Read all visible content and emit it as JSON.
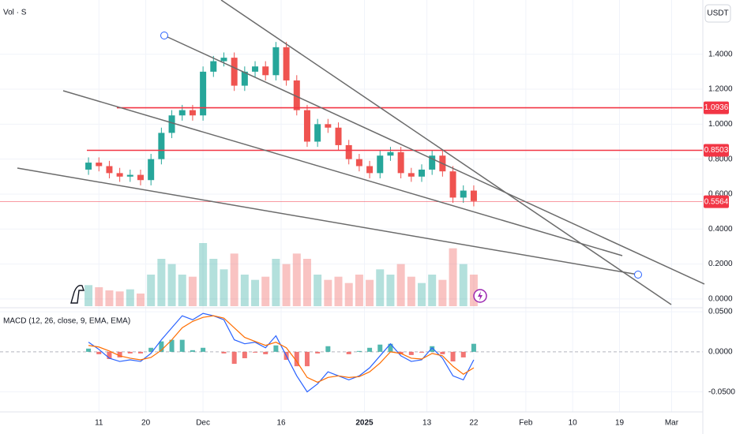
{
  "chart_data": [
    {
      "type": "candlestick",
      "title": "Vol · S",
      "currency": "USDT",
      "x": [
        0,
        2,
        4,
        6,
        8,
        10,
        12,
        14,
        16,
        18,
        20,
        22,
        24,
        26,
        28,
        30,
        32,
        34,
        36,
        38,
        40,
        42,
        44,
        46,
        48,
        50,
        52,
        54,
        56,
        58,
        60,
        62,
        64,
        66,
        68,
        70,
        72,
        74
      ],
      "open": [
        0.74,
        0.78,
        0.76,
        0.72,
        0.7,
        0.71,
        0.68,
        0.8,
        0.95,
        1.05,
        1.08,
        1.05,
        1.3,
        1.36,
        1.38,
        1.22,
        1.3,
        1.33,
        1.28,
        1.44,
        1.25,
        1.08,
        0.9,
        1.0,
        0.98,
        0.88,
        0.8,
        0.76,
        0.72,
        0.82,
        0.84,
        0.72,
        0.7,
        0.74,
        0.82,
        0.73,
        0.58,
        0.62
      ],
      "high": [
        0.81,
        0.81,
        0.79,
        0.75,
        0.74,
        0.74,
        0.83,
        0.98,
        1.08,
        1.11,
        1.11,
        1.33,
        1.39,
        1.41,
        1.41,
        1.33,
        1.36,
        1.36,
        1.47,
        1.47,
        1.28,
        1.11,
        1.03,
        1.03,
        1.01,
        0.91,
        0.83,
        0.79,
        0.85,
        0.87,
        0.87,
        0.75,
        0.77,
        0.85,
        0.85,
        0.76,
        0.65,
        0.65
      ],
      "low": [
        0.71,
        0.73,
        0.69,
        0.67,
        0.67,
        0.65,
        0.65,
        0.77,
        0.92,
        1.02,
        1.02,
        1.02,
        1.27,
        1.33,
        1.19,
        1.19,
        1.27,
        1.25,
        1.25,
        1.22,
        1.05,
        0.87,
        0.87,
        0.95,
        0.85,
        0.77,
        0.73,
        0.69,
        0.69,
        0.79,
        0.69,
        0.67,
        0.67,
        0.71,
        0.7,
        0.55,
        0.55,
        0.53
      ],
      "close": [
        0.78,
        0.76,
        0.72,
        0.7,
        0.71,
        0.68,
        0.8,
        0.95,
        1.05,
        1.08,
        1.05,
        1.3,
        1.36,
        1.38,
        1.22,
        1.3,
        1.33,
        1.28,
        1.44,
        1.25,
        1.08,
        0.9,
        1.0,
        0.98,
        0.88,
        0.8,
        0.76,
        0.72,
        0.82,
        0.84,
        0.72,
        0.7,
        0.74,
        0.82,
        0.73,
        0.58,
        0.62,
        0.56
      ],
      "volume": [
        20,
        18,
        15,
        14,
        16,
        12,
        30,
        45,
        40,
        30,
        28,
        60,
        45,
        35,
        50,
        30,
        25,
        28,
        45,
        40,
        50,
        45,
        30,
        25,
        28,
        22,
        30,
        25,
        35,
        30,
        40,
        28,
        22,
        30,
        25,
        55,
        40,
        30
      ],
      "up_color": "#26a69a",
      "down_color": "#ef5350",
      "xlim": [
        -17,
        118
      ],
      "xticks": [
        {
          "value": 2,
          "label": "11"
        },
        {
          "value": 11,
          "label": "20"
        },
        {
          "value": 22,
          "label": "Dec"
        },
        {
          "value": 37,
          "label": "16"
        },
        {
          "value": 53,
          "label": "2025"
        },
        {
          "value": 65,
          "label": "13"
        },
        {
          "value": 74,
          "label": "22"
        },
        {
          "value": 84,
          "label": "Feb"
        },
        {
          "value": 93,
          "label": "10"
        },
        {
          "value": 102,
          "label": "19"
        },
        {
          "value": 112,
          "label": "Mar"
        }
      ],
      "ylim": [
        -0.05,
        1.71
      ],
      "yticks": [
        {
          "value": 0,
          "label": "0.0000"
        },
        {
          "value": 0.2,
          "label": "0.2000"
        },
        {
          "value": 0.4,
          "label": "0.4000"
        },
        {
          "value": 0.6,
          "label": "0.6000"
        },
        {
          "value": 0.8,
          "label": "0.8000"
        },
        {
          "value": 1,
          "label": "1.0000"
        },
        {
          "value": 1.2,
          "label": "1.2000"
        },
        {
          "value": 1.4,
          "label": "1.4000"
        }
      ],
      "grid": true,
      "price_lines": [
        1.0936,
        0.8503,
        0.5564
      ]
    },
    {
      "type": "macd",
      "title": "MACD (12, 26, close, 9, EMA, EMA)",
      "series": [
        {
          "color": "#2962ff",
          "values": [
            0.012,
            0.003,
            -0.008,
            -0.012,
            -0.01,
            -0.012,
            -0.002,
            0.015,
            0.03,
            0.045,
            0.04,
            0.048,
            0.045,
            0.04,
            0.015,
            0.01,
            0.012,
            0.005,
            0.02,
            -0.005,
            -0.03,
            -0.05,
            -0.04,
            -0.025,
            -0.03,
            -0.035,
            -0.03,
            -0.02,
            -0.005,
            0.01,
            -0.005,
            -0.012,
            -0.01,
            0.005,
            -0.008,
            -0.03,
            -0.035,
            -0.01
          ]
        },
        {
          "color": "#ff6d00",
          "values": [
            0.008,
            0.006,
            0.001,
            -0.005,
            -0.008,
            -0.01,
            -0.007,
            0.002,
            0.015,
            0.03,
            0.038,
            0.043,
            0.045,
            0.042,
            0.03,
            0.018,
            0.013,
            0.008,
            0.012,
            0.005,
            -0.012,
            -0.032,
            -0.038,
            -0.032,
            -0.03,
            -0.032,
            -0.031,
            -0.025,
            -0.014,
            0.0,
            -0.002,
            -0.008,
            -0.009,
            -0.002,
            -0.005,
            -0.018,
            -0.028,
            -0.02
          ]
        }
      ],
      "histogram": {
        "values": [
          0.004,
          -0.003,
          -0.009,
          -0.007,
          -0.002,
          -0.002,
          0.005,
          0.013,
          0.015,
          0.015,
          0.002,
          0.005,
          0.0,
          -0.002,
          -0.015,
          -0.008,
          -0.001,
          -0.003,
          0.008,
          -0.01,
          -0.018,
          -0.018,
          -0.002,
          0.007,
          0.0,
          -0.003,
          0.001,
          0.005,
          0.009,
          0.01,
          -0.003,
          -0.004,
          -0.001,
          0.007,
          -0.003,
          -0.012,
          -0.007,
          0.01
        ],
        "up_color": "#26a69a",
        "down_color": "#ef5350"
      },
      "ylim": [
        -0.075,
        0.055
      ],
      "yticks": [
        {
          "value": -0.05,
          "label": "-0.0500"
        },
        {
          "value": 0,
          "label": "0.0000"
        },
        {
          "value": 0.05,
          "label": "0.0500"
        }
      ]
    }
  ]
}
